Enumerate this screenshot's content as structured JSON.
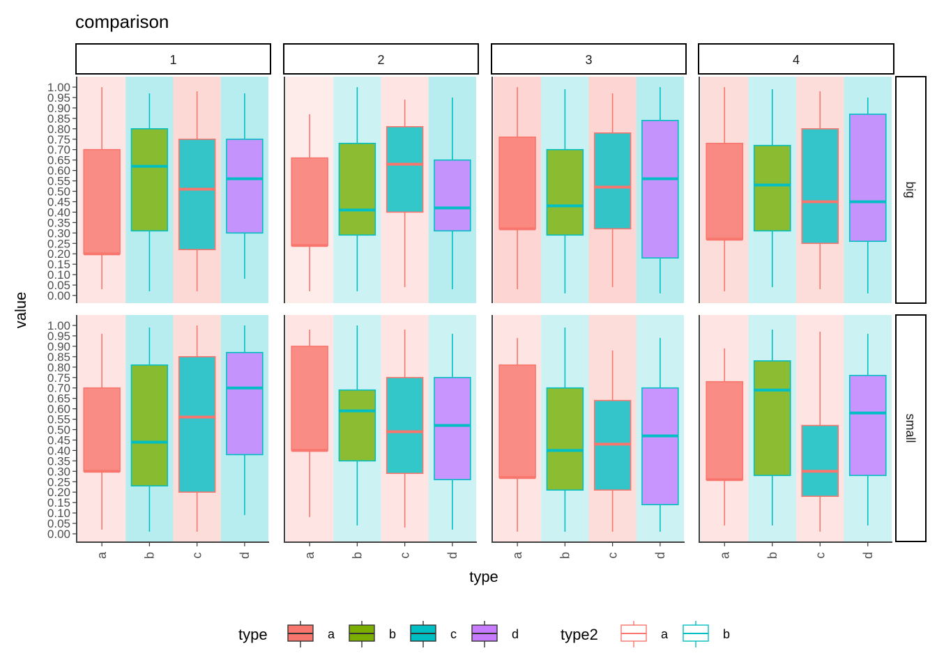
{
  "chart_data": {
    "type": "boxplot",
    "title": "comparison",
    "xlabel": "type",
    "ylabel": "value",
    "ylim": [
      0,
      1
    ],
    "y_ticks": [
      "0.00",
      "0.05",
      "0.10",
      "0.15",
      "0.20",
      "0.25",
      "0.30",
      "0.35",
      "0.40",
      "0.45",
      "0.50",
      "0.55",
      "0.60",
      "0.65",
      "0.70",
      "0.75",
      "0.80",
      "0.85",
      "0.90",
      "0.95",
      "1.00"
    ],
    "categories": [
      "a",
      "b",
      "c",
      "d"
    ],
    "col_facets": [
      "1",
      "2",
      "3",
      "4"
    ],
    "row_facets": [
      "big",
      "small"
    ],
    "colors": {
      "type": {
        "a": "#F8766D",
        "b": "#7CAE00",
        "c": "#00BFC4",
        "d": "#C77CFF"
      },
      "type2": {
        "a": "#F8766D",
        "b": "#00BFC4"
      }
    },
    "legend": {
      "position": "bottom",
      "type_title": "type",
      "type_items": [
        "a",
        "b",
        "c",
        "d"
      ],
      "type2_title": "type2",
      "type2_items": [
        "a",
        "b"
      ]
    },
    "panels": [
      {
        "row": "big",
        "col": "1",
        "boxes": [
          {
            "type": "a",
            "type2": "a",
            "min": 0.03,
            "q1": 0.2,
            "median": 0.2,
            "q3": 0.7,
            "max": 1.0,
            "bg_alpha": 0.2
          },
          {
            "type": "b",
            "type2": "b",
            "min": 0.02,
            "q1": 0.31,
            "median": 0.62,
            "q3": 0.8,
            "max": 0.97,
            "bg_alpha": 0.28
          },
          {
            "type": "c",
            "type2": "a",
            "min": 0.02,
            "q1": 0.22,
            "median": 0.51,
            "q3": 0.75,
            "max": 0.98,
            "bg_alpha": 0.28
          },
          {
            "type": "d",
            "type2": "b",
            "min": 0.08,
            "q1": 0.3,
            "median": 0.56,
            "q3": 0.75,
            "max": 0.97,
            "bg_alpha": 0.28
          }
        ]
      },
      {
        "row": "big",
        "col": "2",
        "boxes": [
          {
            "type": "a",
            "type2": "a",
            "min": 0.02,
            "q1": 0.24,
            "median": 0.24,
            "q3": 0.66,
            "max": 0.87,
            "bg_alpha": 0.14
          },
          {
            "type": "b",
            "type2": "b",
            "min": 0.02,
            "q1": 0.29,
            "median": 0.41,
            "q3": 0.73,
            "max": 1.0,
            "bg_alpha": 0.2
          },
          {
            "type": "c",
            "type2": "a",
            "min": 0.04,
            "q1": 0.4,
            "median": 0.63,
            "q3": 0.81,
            "max": 0.94,
            "bg_alpha": 0.2
          },
          {
            "type": "d",
            "type2": "b",
            "min": 0.03,
            "q1": 0.31,
            "median": 0.42,
            "q3": 0.65,
            "max": 0.95,
            "bg_alpha": 0.28
          }
        ]
      },
      {
        "row": "big",
        "col": "3",
        "boxes": [
          {
            "type": "a",
            "type2": "a",
            "min": 0.03,
            "q1": 0.32,
            "median": 0.32,
            "q3": 0.76,
            "max": 1.0,
            "bg_alpha": 0.3
          },
          {
            "type": "b",
            "type2": "b",
            "min": 0.01,
            "q1": 0.29,
            "median": 0.43,
            "q3": 0.7,
            "max": 0.99,
            "bg_alpha": 0.22
          },
          {
            "type": "c",
            "type2": "a",
            "min": 0.04,
            "q1": 0.32,
            "median": 0.52,
            "q3": 0.78,
            "max": 0.97,
            "bg_alpha": 0.3
          },
          {
            "type": "d",
            "type2": "b",
            "min": 0.01,
            "q1": 0.18,
            "median": 0.56,
            "q3": 0.84,
            "max": 1.0,
            "bg_alpha": 0.28
          }
        ]
      },
      {
        "row": "big",
        "col": "4",
        "boxes": [
          {
            "type": "a",
            "type2": "a",
            "min": 0.02,
            "q1": 0.27,
            "median": 0.27,
            "q3": 0.73,
            "max": 1.0,
            "bg_alpha": 0.25
          },
          {
            "type": "b",
            "type2": "b",
            "min": 0.04,
            "q1": 0.31,
            "median": 0.53,
            "q3": 0.72,
            "max": 0.99,
            "bg_alpha": 0.22
          },
          {
            "type": "c",
            "type2": "a",
            "min": 0.03,
            "q1": 0.25,
            "median": 0.45,
            "q3": 0.8,
            "max": 0.98,
            "bg_alpha": 0.25
          },
          {
            "type": "d",
            "type2": "b",
            "min": 0.01,
            "q1": 0.26,
            "median": 0.45,
            "q3": 0.87,
            "max": 0.95,
            "bg_alpha": 0.25
          }
        ]
      },
      {
        "row": "small",
        "col": "1",
        "boxes": [
          {
            "type": "a",
            "type2": "a",
            "min": 0.02,
            "q1": 0.3,
            "median": 0.3,
            "q3": 0.7,
            "max": 0.96,
            "bg_alpha": 0.2
          },
          {
            "type": "b",
            "type2": "b",
            "min": 0.01,
            "q1": 0.23,
            "median": 0.44,
            "q3": 0.81,
            "max": 0.99,
            "bg_alpha": 0.28
          },
          {
            "type": "c",
            "type2": "a",
            "min": 0.01,
            "q1": 0.2,
            "median": 0.56,
            "q3": 0.85,
            "max": 1.0,
            "bg_alpha": 0.25
          },
          {
            "type": "d",
            "type2": "b",
            "min": 0.09,
            "q1": 0.38,
            "median": 0.7,
            "q3": 0.87,
            "max": 1.0,
            "bg_alpha": 0.28
          }
        ]
      },
      {
        "row": "small",
        "col": "2",
        "boxes": [
          {
            "type": "a",
            "type2": "a",
            "min": 0.08,
            "q1": 0.4,
            "median": 0.4,
            "q3": 0.9,
            "max": 0.98,
            "bg_alpha": 0.2
          },
          {
            "type": "b",
            "type2": "b",
            "min": 0.04,
            "q1": 0.35,
            "median": 0.59,
            "q3": 0.69,
            "max": 1.0,
            "bg_alpha": 0.2
          },
          {
            "type": "c",
            "type2": "a",
            "min": 0.03,
            "q1": 0.29,
            "median": 0.49,
            "q3": 0.75,
            "max": 0.98,
            "bg_alpha": 0.2
          },
          {
            "type": "d",
            "type2": "b",
            "min": 0.02,
            "q1": 0.26,
            "median": 0.52,
            "q3": 0.75,
            "max": 0.96,
            "bg_alpha": 0.2
          }
        ]
      },
      {
        "row": "small",
        "col": "3",
        "boxes": [
          {
            "type": "a",
            "type2": "a",
            "min": 0.01,
            "q1": 0.27,
            "median": 0.27,
            "q3": 0.81,
            "max": 0.94,
            "bg_alpha": 0.2
          },
          {
            "type": "b",
            "type2": "b",
            "min": 0.01,
            "q1": 0.21,
            "median": 0.4,
            "q3": 0.7,
            "max": 0.99,
            "bg_alpha": 0.2
          },
          {
            "type": "c",
            "type2": "a",
            "min": 0.01,
            "q1": 0.21,
            "median": 0.43,
            "q3": 0.64,
            "max": 0.88,
            "bg_alpha": 0.25
          },
          {
            "type": "d",
            "type2": "b",
            "min": 0.01,
            "q1": 0.14,
            "median": 0.47,
            "q3": 0.7,
            "max": 0.94,
            "bg_alpha": 0.2
          }
        ]
      },
      {
        "row": "small",
        "col": "4",
        "boxes": [
          {
            "type": "a",
            "type2": "a",
            "min": 0.04,
            "q1": 0.26,
            "median": 0.26,
            "q3": 0.73,
            "max": 0.89,
            "bg_alpha": 0.2
          },
          {
            "type": "b",
            "type2": "b",
            "min": 0.04,
            "q1": 0.28,
            "median": 0.69,
            "q3": 0.83,
            "max": 0.98,
            "bg_alpha": 0.2
          },
          {
            "type": "c",
            "type2": "a",
            "min": 0.01,
            "q1": 0.18,
            "median": 0.3,
            "q3": 0.52,
            "max": 0.97,
            "bg_alpha": 0.2
          },
          {
            "type": "d",
            "type2": "b",
            "min": 0.04,
            "q1": 0.28,
            "median": 0.58,
            "q3": 0.76,
            "max": 0.96,
            "bg_alpha": 0.2
          }
        ]
      }
    ]
  }
}
